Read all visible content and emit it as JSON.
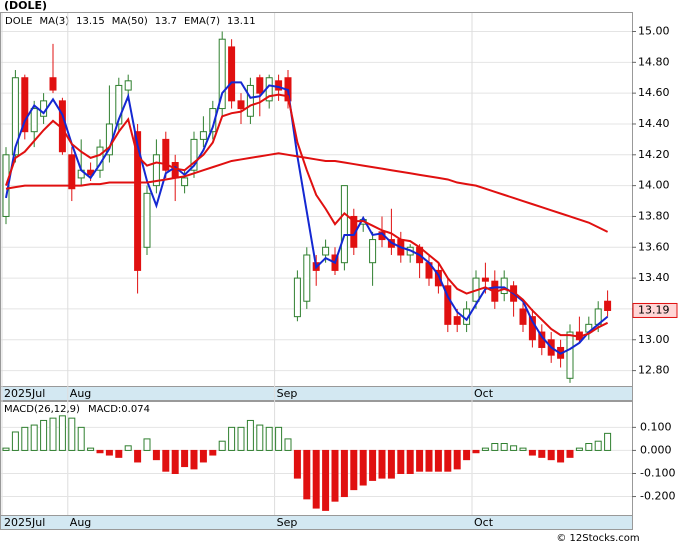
{
  "chart_data": [
    {
      "type": "candlestick",
      "title": "(DOLE)",
      "symbol": "DOLE",
      "categories": [
        "2025Jul",
        null,
        null,
        null,
        null,
        null,
        null,
        "Aug",
        null,
        null,
        null,
        null,
        null,
        null,
        null,
        null,
        null,
        null,
        null,
        null,
        null,
        null,
        null,
        null,
        null,
        null,
        null,
        null,
        null,
        "Sep",
        null,
        null,
        null,
        null,
        null,
        null,
        null,
        null,
        null,
        null,
        null,
        null,
        null,
        null,
        null,
        null,
        null,
        null,
        null,
        null,
        "Oct",
        null,
        null,
        null,
        null,
        null,
        null,
        null,
        null,
        null,
        null,
        null,
        null,
        null,
        null
      ],
      "open": [
        13.8,
        14.2,
        14.7,
        14.35,
        14.45,
        14.7,
        14.55,
        14.2,
        14.05,
        14.1,
        14.1,
        14.2,
        14.4,
        14.62,
        14.35,
        13.6,
        14.0,
        14.3,
        14.15,
        14.0,
        14.1,
        14.3,
        14.35,
        14.5,
        14.9,
        14.55,
        14.45,
        14.7,
        14.55,
        14.68,
        14.7,
        13.15,
        13.25,
        13.5,
        13.55,
        13.55,
        13.5,
        13.8,
        13.75,
        13.5,
        13.7,
        13.65,
        13.65,
        13.55,
        13.6,
        13.5,
        13.45,
        13.35,
        13.15,
        13.1,
        13.25,
        13.4,
        13.38,
        13.3,
        13.35,
        13.2,
        13.15,
        13.05,
        13.0,
        12.95,
        12.75,
        13.05,
        13.05,
        13.1,
        13.25
      ],
      "high": [
        14.25,
        14.75,
        14.72,
        14.55,
        14.6,
        14.92,
        14.57,
        14.25,
        14.3,
        14.15,
        14.3,
        14.65,
        14.7,
        14.72,
        14.4,
        14.0,
        14.3,
        14.35,
        14.2,
        14.1,
        14.35,
        14.45,
        14.55,
        15.0,
        14.95,
        14.6,
        14.7,
        14.72,
        14.72,
        14.72,
        14.75,
        13.45,
        13.6,
        13.55,
        13.65,
        13.6,
        14.0,
        13.85,
        13.8,
        13.7,
        13.8,
        13.85,
        13.7,
        13.62,
        13.62,
        13.55,
        13.5,
        13.4,
        13.2,
        13.25,
        13.45,
        13.5,
        13.45,
        13.45,
        13.38,
        13.25,
        13.2,
        13.1,
        13.05,
        13.0,
        13.1,
        13.15,
        13.15,
        13.25,
        13.32
      ],
      "low": [
        13.75,
        14.15,
        14.3,
        14.25,
        14.4,
        14.6,
        14.2,
        13.9,
        14.0,
        14.03,
        14.05,
        14.15,
        14.35,
        14.55,
        13.3,
        13.55,
        13.95,
        14.05,
        13.9,
        13.95,
        14.05,
        14.25,
        14.3,
        14.45,
        14.5,
        14.4,
        14.4,
        14.45,
        14.5,
        14.55,
        14.5,
        13.12,
        13.2,
        13.35,
        13.5,
        13.42,
        13.45,
        13.55,
        13.7,
        13.35,
        13.6,
        13.55,
        13.5,
        13.5,
        13.4,
        13.35,
        13.3,
        13.05,
        13.05,
        13.05,
        13.2,
        13.3,
        13.2,
        13.25,
        13.15,
        13.05,
        12.95,
        12.9,
        12.85,
        12.82,
        12.72,
        12.98,
        13.0,
        13.05,
        13.15
      ],
      "close": [
        14.2,
        14.7,
        14.35,
        14.5,
        14.55,
        14.62,
        14.22,
        13.98,
        14.1,
        14.07,
        14.25,
        14.4,
        14.65,
        14.68,
        13.45,
        13.95,
        14.2,
        14.1,
        14.05,
        14.05,
        14.3,
        14.35,
        14.5,
        14.95,
        14.55,
        14.5,
        14.65,
        14.6,
        14.7,
        14.62,
        14.55,
        13.4,
        13.55,
        13.45,
        13.6,
        13.45,
        14.0,
        13.6,
        13.78,
        13.65,
        13.65,
        13.6,
        13.55,
        13.6,
        13.5,
        13.4,
        13.35,
        13.1,
        13.1,
        13.2,
        13.4,
        13.38,
        13.25,
        13.4,
        13.25,
        13.1,
        13.0,
        12.95,
        12.9,
        12.88,
        13.05,
        13.0,
        13.1,
        13.2,
        13.19
      ],
      "up_color": "#2f7f2f",
      "down_color": "#e01010",
      "series": [
        {
          "name": "MA(3)",
          "color": "#1428d2",
          "legend_value": 13.15,
          "values": [
            13.92,
            14.25,
            14.42,
            14.52,
            14.47,
            14.56,
            14.46,
            14.27,
            14.1,
            14.05,
            14.14,
            14.24,
            14.43,
            14.58,
            14.26,
            14.03,
            13.87,
            14.08,
            14.12,
            14.07,
            14.13,
            14.23,
            14.38,
            14.6,
            14.67,
            14.67,
            14.57,
            14.58,
            14.65,
            14.64,
            14.62,
            14.19,
            13.83,
            13.47,
            13.53,
            13.5,
            13.68,
            13.68,
            13.79,
            13.68,
            13.69,
            13.63,
            13.6,
            13.58,
            13.55,
            13.5,
            13.42,
            13.28,
            13.18,
            13.13,
            13.23,
            13.33,
            13.34,
            13.34,
            13.3,
            13.25,
            13.12,
            13.02,
            12.95,
            12.91,
            12.94,
            12.98,
            13.05,
            13.1,
            13.15
          ]
        },
        {
          "name": "MA(50)",
          "color": "#e01010",
          "legend_value": 13.7,
          "values": [
            13.98,
            13.99,
            14.0,
            14.0,
            14.0,
            14.0,
            14.0,
            14.0,
            14.0,
            14.01,
            14.01,
            14.02,
            14.02,
            14.02,
            14.02,
            14.02,
            14.03,
            14.04,
            14.05,
            14.06,
            14.08,
            14.1,
            14.12,
            14.14,
            14.16,
            14.17,
            14.18,
            14.19,
            14.2,
            14.21,
            14.2,
            14.19,
            14.18,
            14.17,
            14.16,
            14.16,
            14.15,
            14.14,
            14.13,
            14.12,
            14.11,
            14.1,
            14.09,
            14.08,
            14.07,
            14.06,
            14.05,
            14.04,
            14.02,
            14.01,
            14.0,
            13.98,
            13.96,
            13.94,
            13.92,
            13.9,
            13.88,
            13.86,
            13.84,
            13.82,
            13.8,
            13.78,
            13.76,
            13.73,
            13.7
          ]
        },
        {
          "name": "EMA(7)",
          "color": "#e01010",
          "legend_value": 13.11,
          "values": [
            14.0,
            14.18,
            14.22,
            14.29,
            14.36,
            14.42,
            14.37,
            14.27,
            14.22,
            14.18,
            14.2,
            14.25,
            14.35,
            14.43,
            14.19,
            14.13,
            14.15,
            14.14,
            14.11,
            14.1,
            14.15,
            14.2,
            14.28,
            14.45,
            14.47,
            14.48,
            14.52,
            14.54,
            14.58,
            14.59,
            14.58,
            14.28,
            14.1,
            13.94,
            13.85,
            13.75,
            13.82,
            13.77,
            13.77,
            13.74,
            13.71,
            13.69,
            13.65,
            13.64,
            13.6,
            13.55,
            13.5,
            13.4,
            13.33,
            13.3,
            13.32,
            13.34,
            13.31,
            13.33,
            13.31,
            13.26,
            13.19,
            13.13,
            13.07,
            13.03,
            13.03,
            13.02,
            13.04,
            13.08,
            13.11
          ]
        }
      ],
      "ylim": [
        12.7,
        15.12
      ],
      "yticks": [
        {
          "value": 12.8,
          "label": "12.80"
        },
        {
          "value": 13,
          "label": "13.00"
        },
        {
          "value": 13.2,
          "label": "13.20"
        },
        {
          "value": 13.4,
          "label": "13.40"
        },
        {
          "value": 13.6,
          "label": "13.60"
        },
        {
          "value": 13.8,
          "label": "13.80"
        },
        {
          "value": 14,
          "label": "14.00"
        },
        {
          "value": 14.2,
          "label": "14.20"
        },
        {
          "value": 14.4,
          "label": "14.40"
        },
        {
          "value": 14.6,
          "label": "14.60"
        },
        {
          "value": 14.8,
          "label": "14.80"
        },
        {
          "value": 15,
          "label": "15.00"
        }
      ],
      "grid": true
    },
    {
      "type": "bar",
      "title": "MACD(26,12,9)",
      "value_label": "MACD:0.074",
      "up_color": "#2f7f2f",
      "down_color": "#e01010",
      "values": [
        0.01,
        0.08,
        0.1,
        0.11,
        0.13,
        0.14,
        0.15,
        0.14,
        0.1,
        0.01,
        -0.01,
        -0.02,
        -0.03,
        0.02,
        -0.05,
        0.05,
        -0.04,
        -0.09,
        -0.1,
        -0.07,
        -0.08,
        -0.05,
        -0.02,
        0.04,
        0.1,
        0.1,
        0.13,
        0.11,
        0.1,
        0.1,
        0.05,
        -0.12,
        -0.21,
        -0.25,
        -0.26,
        -0.22,
        -0.2,
        -0.17,
        -0.15,
        -0.13,
        -0.12,
        -0.12,
        -0.1,
        -0.1,
        -0.09,
        -0.09,
        -0.09,
        -0.09,
        -0.08,
        -0.04,
        -0.01,
        0.01,
        0.03,
        0.03,
        0.02,
        0.01,
        -0.02,
        -0.03,
        -0.04,
        -0.05,
        -0.03,
        0.01,
        0.03,
        0.04,
        0.074
      ],
      "ylim": [
        -0.28,
        0.21
      ],
      "yticks": [
        {
          "value": -0.2,
          "label": "-0.200"
        },
        {
          "value": -0.1,
          "label": "-0.100"
        },
        {
          "value": 0,
          "label": "0.000"
        },
        {
          "value": 0.1,
          "label": "0.100"
        }
      ],
      "grid": true
    }
  ],
  "footer": "© 12Stocks.com"
}
